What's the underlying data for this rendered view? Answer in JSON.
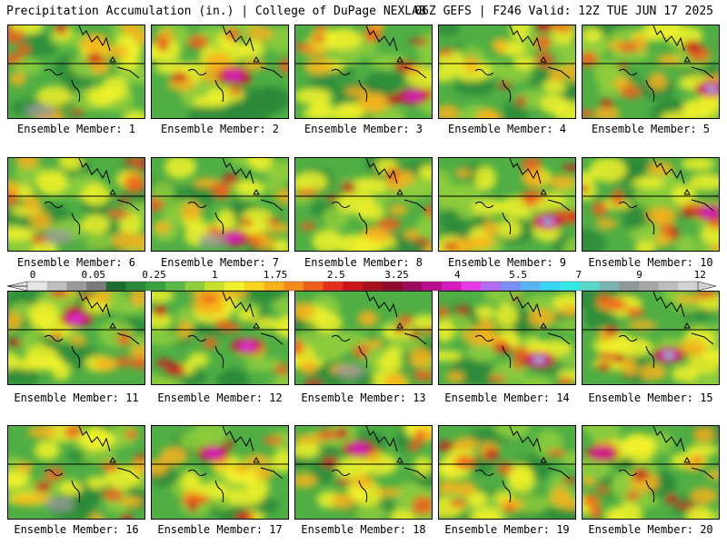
{
  "header": {
    "title_left": "Precipitation Accumulation (in.) | College of DuPage NEXLAB",
    "title_right": "06Z GEFS | F246 Valid: 12Z TUE JUN 17 2025"
  },
  "panel_label_prefix": "Ensemble Member:",
  "members": [
    1,
    2,
    3,
    4,
    5,
    6,
    7,
    8,
    9,
    10,
    11,
    12,
    13,
    14,
    15,
    16,
    17,
    18,
    19,
    20
  ],
  "colorbar": {
    "labels": [
      "0",
      "0.05",
      "0.25",
      "1",
      "1.75",
      "2.5",
      "3.25",
      "4",
      "5.5",
      "7",
      "9",
      "12"
    ],
    "colors": [
      "#e6e6e6",
      "#bfbfbf",
      "#9a9a9a",
      "#7a7a7a",
      "#1e6b2e",
      "#2a8a3a",
      "#3aa13f",
      "#5ab848",
      "#8fcf3d",
      "#c8e02c",
      "#f2f22a",
      "#f7d51f",
      "#f7b21c",
      "#f58b1c",
      "#ee5e1c",
      "#e3301e",
      "#c9151c",
      "#a9101e",
      "#8c0b2a",
      "#9a0a5e",
      "#b8108c",
      "#d41ab8",
      "#e63ce8",
      "#b46cf2",
      "#7a8ef4",
      "#5ab4f4",
      "#3ad6f4",
      "#32e8e6",
      "#58d6c8",
      "#7ab4b4",
      "#8e9a9a",
      "#a6a6a6",
      "#bdbdbd",
      "#d2d2d2"
    ]
  },
  "map_colors": {
    "green_dark": "#2a8a3a",
    "green": "#4fae44",
    "green_light": "#8fcf3d",
    "yellow": "#f2f22a",
    "orange": "#f7b21c",
    "red_orange": "#ee5e1c",
    "red": "#c9151c",
    "magenta": "#d41ab8",
    "violet": "#e63ce8",
    "cyan": "#3ad6f4",
    "gray": "#9a9a9a"
  }
}
